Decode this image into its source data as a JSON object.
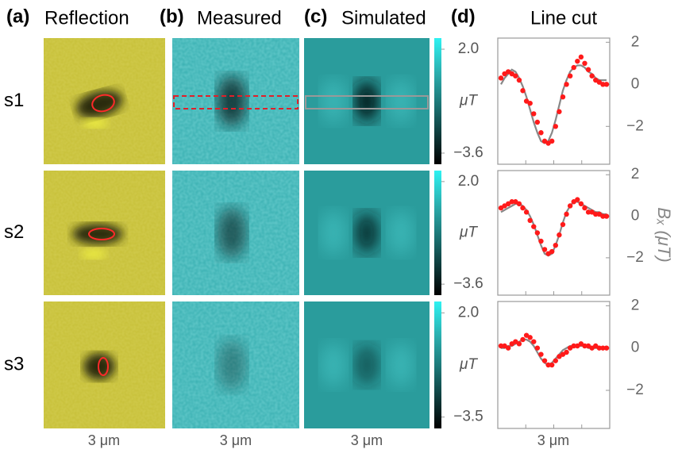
{
  "headers": [
    {
      "label": "(a)",
      "title": "Reflection"
    },
    {
      "label": "(b)",
      "title": "Measured"
    },
    {
      "label": "(c)",
      "title": "Simulated"
    },
    {
      "label": "(d)",
      "title": "Line cut"
    }
  ],
  "rows": [
    "s1",
    "s2",
    "s3"
  ],
  "scale_bar_label": "3 μm",
  "colorbars": [
    {
      "unit": "μT",
      "clim": [
        -4.2,
        2.6
      ],
      "ticks": [
        {
          "value": 2.0,
          "label": "2.0"
        },
        {
          "value": -3.6,
          "label": "−3.6"
        }
      ]
    },
    {
      "unit": "μT",
      "clim": [
        -4.2,
        2.6
      ],
      "ticks": [
        {
          "value": 2.0,
          "label": "2.0"
        },
        {
          "value": -3.6,
          "label": "−3.6"
        }
      ]
    },
    {
      "unit": "μT",
      "clim": [
        -4.1,
        2.6
      ],
      "ticks": [
        {
          "value": 2.0,
          "label": "2.0"
        },
        {
          "value": -3.5,
          "label": "−3.5"
        }
      ]
    }
  ],
  "ylabel": "Bₓ (μT)",
  "chart_data": [
    {
      "type": "line",
      "ylim": [
        -3.8,
        2.2
      ],
      "yticks": [
        {
          "value": 2,
          "label": "2"
        },
        {
          "value": 0,
          "label": "0"
        },
        {
          "value": -2,
          "label": "−2"
        }
      ],
      "series": [
        {
          "color": "#ff1a1a",
          "marker": "dot",
          "values": [
            0.3,
            0.5,
            0.6,
            0.5,
            0.4,
            0.2,
            -0.3,
            -0.8,
            -0.9,
            -1.4,
            -1.8,
            -2.3,
            -2.7,
            -2.8,
            -2.7,
            -2.0,
            -1.3,
            -0.6,
            0.0,
            0.4,
            0.8,
            1.1,
            1.3,
            1.0,
            0.7,
            0.4,
            0.2,
            0.1,
            0.0,
            0.0
          ]
        },
        {
          "color": "#888888",
          "marker": "line",
          "values": [
            0.0,
            0.3,
            0.5,
            0.7,
            0.6,
            0.3,
            -0.1,
            -0.6,
            -1.2,
            -1.8,
            -2.3,
            -2.7,
            -2.8,
            -2.7,
            -2.3,
            -1.7,
            -1.0,
            -0.3,
            0.2,
            0.6,
            0.8,
            0.9,
            0.9,
            0.8,
            0.6,
            0.5,
            0.3,
            0.2,
            0.2,
            0.2
          ]
        }
      ]
    },
    {
      "type": "line",
      "ylim": [
        -3.8,
        2.2
      ],
      "yticks": [
        {
          "value": 2,
          "label": "2"
        },
        {
          "value": 0,
          "label": "0"
        },
        {
          "value": -2,
          "label": "−2"
        }
      ],
      "series": [
        {
          "color": "#ff1a1a",
          "marker": "dot",
          "values": [
            0.4,
            0.5,
            0.6,
            0.7,
            0.7,
            0.6,
            0.4,
            0.2,
            -0.2,
            -0.5,
            -0.8,
            -1.2,
            -1.6,
            -1.8,
            -1.7,
            -1.4,
            -0.9,
            -0.4,
            0.1,
            0.5,
            0.7,
            0.8,
            0.6,
            0.4,
            0.2,
            0.2,
            0.1,
            0.1,
            0.0,
            0.0
          ]
        },
        {
          "color": "#888888",
          "marker": "line",
          "values": [
            0.2,
            0.3,
            0.4,
            0.5,
            0.6,
            0.6,
            0.5,
            0.3,
            0.0,
            -0.4,
            -0.9,
            -1.4,
            -1.8,
            -1.9,
            -1.8,
            -1.4,
            -0.9,
            -0.3,
            0.2,
            0.5,
            0.7,
            0.7,
            0.6,
            0.5,
            0.4,
            0.3,
            0.2,
            0.2,
            0.1,
            0.1
          ]
        }
      ]
    },
    {
      "type": "line",
      "ylim": [
        -3.8,
        2.2
      ],
      "yticks": [
        {
          "value": 2,
          "label": "2"
        },
        {
          "value": 0,
          "label": "0"
        },
        {
          "value": -2,
          "label": "−2"
        }
      ],
      "series": [
        {
          "color": "#ff1a1a",
          "marker": "dot",
          "values": [
            0.1,
            0.1,
            0.0,
            0.2,
            0.3,
            0.2,
            0.4,
            0.6,
            0.5,
            0.3,
            0.0,
            -0.3,
            -0.6,
            -0.8,
            -0.8,
            -0.6,
            -0.4,
            -0.3,
            -0.2,
            0.0,
            0.1,
            0.1,
            0.2,
            0.1,
            0.1,
            0.0,
            0.1,
            0.0,
            0.0,
            0.0
          ]
        },
        {
          "color": "#888888",
          "marker": "line",
          "values": [
            0.0,
            0.0,
            0.1,
            0.1,
            0.2,
            0.3,
            0.4,
            0.4,
            0.3,
            0.1,
            -0.2,
            -0.5,
            -0.7,
            -0.8,
            -0.7,
            -0.5,
            -0.3,
            -0.1,
            0.0,
            0.1,
            0.1,
            0.1,
            0.1,
            0.1,
            0.0,
            0.0,
            0.0,
            0.0,
            0.0,
            0.0
          ]
        }
      ]
    }
  ]
}
